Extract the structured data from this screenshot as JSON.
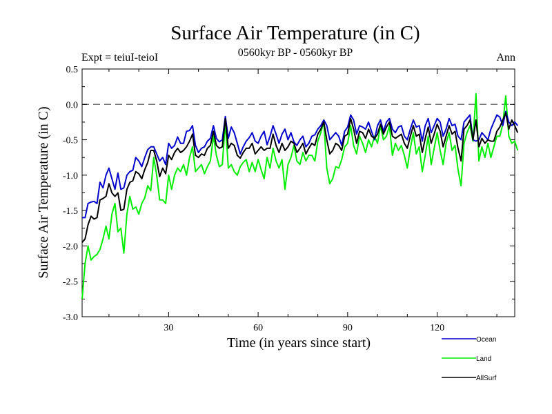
{
  "chart_data": {
    "type": "line",
    "title": "Surface Air Temperature (in C)",
    "subtitle_left": "Expt = teiuI-teioI",
    "subtitle_center": "0560kyr BP - 0560kyr BP",
    "subtitle_right": "Ann",
    "xlabel": "Time (in years since start)",
    "ylabel": "Surface Air Temperature (in C)",
    "xlim": [
      1,
      146
    ],
    "ylim": [
      -3.0,
      0.5
    ],
    "xticks": [
      30,
      60,
      90,
      120
    ],
    "xtick_labels": [
      "30",
      "60",
      "90",
      "120"
    ],
    "yticks": [
      0.5,
      0.0,
      -0.5,
      -1.0,
      -1.5,
      -2.0,
      -2.5,
      -3.0
    ],
    "ytick_labels": [
      "0.5",
      "0.0",
      "-0.5",
      "-1.0",
      "-1.5",
      "-2.0",
      "-2.5",
      "-3.0"
    ],
    "reference_line": 0.0,
    "legend_position": "bottom-right",
    "series": [
      {
        "name": "Ocean",
        "color": "#0000cc",
        "values": [
          -1.6,
          -1.6,
          -1.4,
          -1.38,
          -1.37,
          -1.4,
          -1.1,
          -1.18,
          -1.0,
          -0.9,
          -1.05,
          -1.2,
          -0.97,
          -1.2,
          -1.18,
          -1.0,
          -0.95,
          -0.93,
          -0.75,
          -0.8,
          -0.88,
          -0.75,
          -0.64,
          -0.6,
          -0.6,
          -0.7,
          -0.8,
          -0.75,
          -0.85,
          -0.55,
          -0.62,
          -0.58,
          -0.46,
          -0.55,
          -0.55,
          -0.38,
          -0.37,
          -0.3,
          -0.58,
          -0.68,
          -0.62,
          -0.6,
          -0.52,
          -0.48,
          -0.3,
          -0.48,
          -0.53,
          -0.5,
          -0.17,
          -0.48,
          -0.32,
          -0.4,
          -0.55,
          -0.7,
          -0.6,
          -0.52,
          -0.47,
          -0.4,
          -0.52,
          -0.55,
          -0.45,
          -0.38,
          -0.57,
          -0.45,
          -0.3,
          -0.42,
          -0.55,
          -0.42,
          -0.35,
          -0.5,
          -0.4,
          -0.53,
          -0.58,
          -0.5,
          -0.45,
          -0.6,
          -0.55,
          -0.45,
          -0.43,
          -0.35,
          -0.3,
          -0.22,
          -0.3,
          -0.5,
          -0.45,
          -0.4,
          -0.45,
          -0.58,
          -0.38,
          -0.32,
          -0.15,
          -0.22,
          -0.42,
          -0.3,
          -0.32,
          -0.35,
          -0.25,
          -0.38,
          -0.5,
          -0.3,
          -0.22,
          -0.38,
          -0.25,
          -0.2,
          -0.35,
          -0.4,
          -0.32,
          -0.3,
          -0.45,
          -0.5,
          -0.35,
          -0.22,
          -0.32,
          -0.3,
          -0.52,
          -0.3,
          -0.2,
          -0.4,
          -0.3,
          -0.2,
          -0.25,
          -0.45,
          -0.35,
          -0.2,
          -0.3,
          -0.28,
          -0.45,
          -0.5,
          -0.25,
          -0.2,
          -0.15,
          -0.5,
          -0.52,
          -0.5,
          -0.4,
          -0.45,
          -0.5,
          -0.35,
          -0.25,
          -0.15,
          -0.18,
          -0.3,
          -0.1,
          -0.25,
          -0.3,
          -0.25,
          -0.3
        ]
      },
      {
        "name": "Land",
        "color": "#00ee00",
        "values": [
          -2.75,
          -2.25,
          -2.0,
          -2.2,
          -2.15,
          -2.12,
          -2.05,
          -1.9,
          -1.72,
          -1.9,
          -1.55,
          -1.4,
          -1.8,
          -1.75,
          -2.1,
          -1.55,
          -1.3,
          -1.48,
          -1.45,
          -1.55,
          -1.4,
          -1.32,
          -1.15,
          -1.22,
          -0.75,
          -1.0,
          -1.35,
          -1.35,
          -1.4,
          -1.0,
          -1.2,
          -1.0,
          -0.9,
          -0.95,
          -0.85,
          -1.0,
          -0.75,
          -0.6,
          -0.95,
          -0.9,
          -0.85,
          -0.98,
          -0.88,
          -0.8,
          -0.45,
          -0.72,
          -0.88,
          -0.85,
          -0.25,
          -0.9,
          -0.85,
          -0.95,
          -1.0,
          -0.88,
          -0.82,
          -0.78,
          -0.95,
          -0.82,
          -0.95,
          -0.78,
          -0.92,
          -1.05,
          -0.75,
          -0.9,
          -0.62,
          -0.8,
          -0.9,
          -0.78,
          -1.2,
          -0.85,
          -0.75,
          -0.58,
          -0.8,
          -0.85,
          -0.68,
          -0.8,
          -0.72,
          -0.72,
          -0.8,
          -0.52,
          -0.4,
          -0.25,
          -0.9,
          -1.12,
          -1.05,
          -0.88,
          -0.9,
          -0.78,
          -0.6,
          -0.55,
          -0.3,
          -0.58,
          -0.7,
          -0.45,
          -0.55,
          -0.68,
          -0.5,
          -0.6,
          -0.45,
          -0.55,
          -0.3,
          -0.5,
          -0.45,
          -0.3,
          -0.72,
          -0.55,
          -0.65,
          -0.58,
          -0.72,
          -0.9,
          -0.62,
          -0.4,
          -0.7,
          -0.6,
          -0.95,
          -0.72,
          -0.45,
          -0.85,
          -0.62,
          -0.4,
          -0.65,
          -0.85,
          -0.55,
          -0.4,
          -0.65,
          -0.58,
          -0.92,
          -1.15,
          -0.55,
          -0.4,
          -0.3,
          -0.52,
          0.15,
          -0.8,
          -0.6,
          -0.75,
          -0.55,
          -0.75,
          -0.6,
          -0.45,
          -0.45,
          -0.28,
          0.12,
          -0.45,
          -0.55,
          -0.52,
          -0.65
        ]
      },
      {
        "name": "AllSurf",
        "color": "#000000",
        "values": [
          -1.95,
          -1.9,
          -1.7,
          -1.58,
          -1.62,
          -1.6,
          -1.35,
          -1.33,
          -1.3,
          -1.12,
          -1.25,
          -1.3,
          -1.25,
          -1.5,
          -1.48,
          -1.2,
          -1.1,
          -1.08,
          -0.95,
          -0.98,
          -1.05,
          -0.92,
          -0.82,
          -0.65,
          -0.65,
          -0.8,
          -1.02,
          -0.9,
          -0.98,
          -0.72,
          -0.78,
          -0.68,
          -0.62,
          -0.68,
          -0.65,
          -0.6,
          -0.52,
          -0.42,
          -0.72,
          -0.75,
          -0.7,
          -0.72,
          -0.62,
          -0.58,
          -0.38,
          -0.58,
          -0.62,
          -0.6,
          -0.2,
          -0.62,
          -0.55,
          -0.58,
          -0.72,
          -0.76,
          -0.68,
          -0.62,
          -0.62,
          -0.55,
          -0.7,
          -0.65,
          -0.6,
          -0.65,
          -0.62,
          -0.62,
          -0.42,
          -0.58,
          -0.68,
          -0.55,
          -0.65,
          -0.6,
          -0.52,
          -0.55,
          -0.68,
          -0.62,
          -0.55,
          -0.7,
          -0.62,
          -0.55,
          -0.58,
          -0.42,
          -0.35,
          -0.25,
          -0.5,
          -0.7,
          -0.65,
          -0.55,
          -0.58,
          -0.65,
          -0.45,
          -0.42,
          -0.2,
          -0.35,
          -0.55,
          -0.38,
          -0.4,
          -0.48,
          -0.35,
          -0.45,
          -0.48,
          -0.42,
          -0.28,
          -0.42,
          -0.32,
          -0.25,
          -0.45,
          -0.48,
          -0.45,
          -0.42,
          -0.55,
          -0.62,
          -0.45,
          -0.3,
          -0.45,
          -0.42,
          -0.68,
          -0.48,
          -0.32,
          -0.55,
          -0.42,
          -0.28,
          -0.38,
          -0.6,
          -0.45,
          -0.3,
          -0.42,
          -0.38,
          -0.62,
          -0.8,
          -0.35,
          -0.3,
          -0.22,
          -0.5,
          -0.22,
          -0.6,
          -0.48,
          -0.55,
          -0.5,
          -0.52,
          -0.52,
          -0.38,
          -0.32,
          -0.22,
          -0.12,
          -0.35,
          -0.22,
          -0.3,
          -0.4
        ]
      }
    ]
  }
}
